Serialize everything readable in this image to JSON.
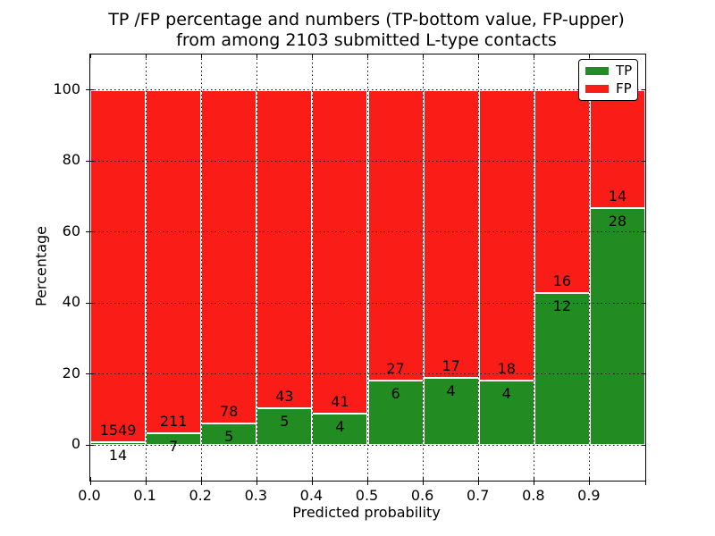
{
  "chart_data": {
    "type": "bar",
    "stacked": true,
    "normalized": "each bin scaled to 100 percent",
    "title": [
      "TP /FP percentage and numbers (TP-bottom value, FP-upper)",
      "from among 2103 submitted L-type contacts"
    ],
    "xlabel": "Predicted probability",
    "ylabel": "Percentage",
    "total_submitted": 2103,
    "bins": {
      "start": [
        0.0,
        0.1,
        0.2,
        0.3,
        0.4,
        0.5,
        0.6,
        0.7,
        0.8,
        0.9
      ],
      "width": 0.1
    },
    "xlim": [
      0.0,
      1.0
    ],
    "ylim": [
      -10,
      110
    ],
    "xtick_labels": [
      "0.0",
      "0.1",
      "0.2",
      "0.3",
      "0.4",
      "0.5",
      "0.6",
      "0.7",
      "0.8",
      "0.9"
    ],
    "ytick_values": [
      0,
      20,
      40,
      60,
      80,
      100
    ],
    "grid": {
      "visible": true,
      "style": "dotted",
      "color": "#000000"
    },
    "series": [
      {
        "name": "TP",
        "color": "#228b22",
        "counts": [
          14,
          7,
          5,
          5,
          4,
          6,
          4,
          4,
          12,
          28
        ]
      },
      {
        "name": "FP",
        "color": "#fa1d17",
        "counts": [
          1549,
          211,
          78,
          43,
          41,
          27,
          17,
          18,
          16,
          14
        ]
      }
    ],
    "tp_percent_by_bin": [
      0.9,
      3.21,
      6.02,
      10.42,
      8.89,
      18.18,
      19.05,
      18.18,
      42.86,
      66.67
    ],
    "legend": {
      "position": "upper-right",
      "items": [
        "TP",
        "FP"
      ]
    },
    "bar_edge_color": "#ffffff",
    "axes_color": "#000000",
    "background_color": "#ffffff"
  }
}
